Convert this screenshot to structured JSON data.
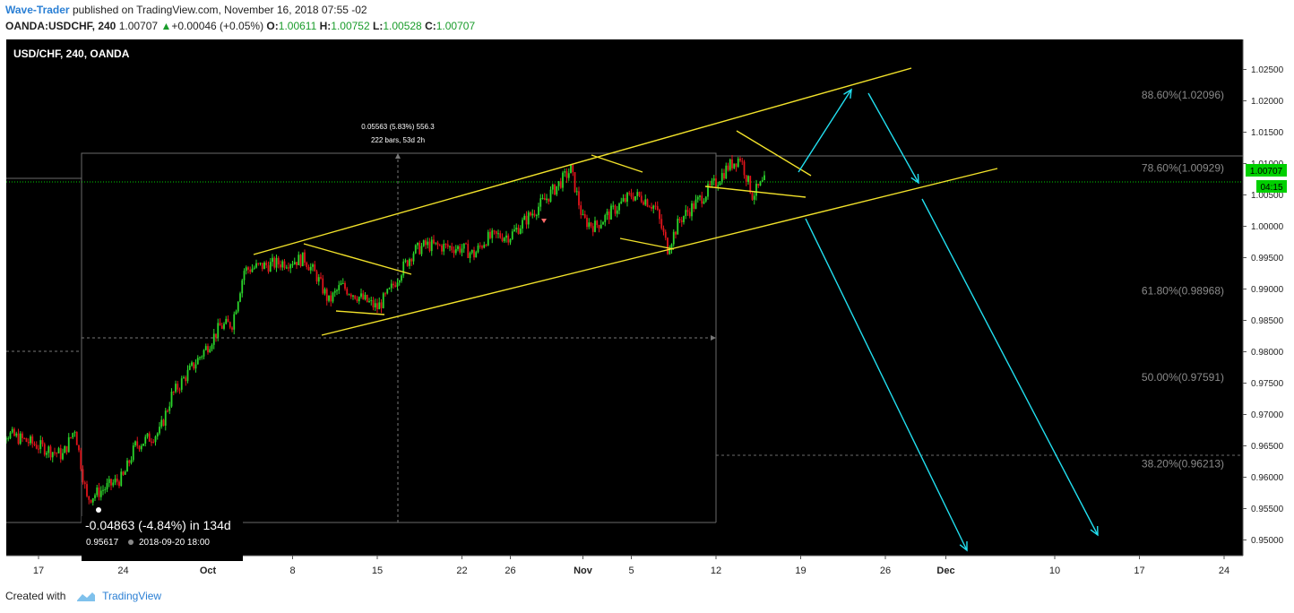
{
  "header": {
    "author": "Wave-Trader",
    "published": "published on TradingView.com, November 16, 2018 07:55 -02",
    "symbol": "OANDA:USDCHF, 240",
    "last": "1.00707",
    "change": "+0.00046 (+0.05%)",
    "o_label": "O:",
    "o_value": "1.00611",
    "h_label": "H:",
    "h_value": "1.00752",
    "l_label": "L:",
    "l_value": "1.00528",
    "c_label": "C:",
    "c_value": "1.00707"
  },
  "footer": {
    "created_with": "Created with",
    "brand": "TradingView"
  },
  "chart_data": {
    "type": "candlestick",
    "title": "USD/CHF, 240, OANDA",
    "ylim": [
      0.9475,
      1.0275
    ],
    "y_ticks": [
      "1.02500",
      "1.02000",
      "1.01500",
      "1.01000",
      "1.00500",
      "1.00000",
      "0.99500",
      "0.99000",
      "0.98500",
      "0.98000",
      "0.97500",
      "0.97000",
      "0.96500",
      "0.96000",
      "0.95500",
      "0.95000"
    ],
    "x_tick_labels": [
      {
        "label": "17",
        "date": "2018-09-17"
      },
      {
        "label": "24",
        "date": "2018-09-24"
      },
      {
        "label": "Oct",
        "date": "2018-10-01"
      },
      {
        "label": "8",
        "date": "2018-10-08"
      },
      {
        "label": "15",
        "date": "2018-10-15"
      },
      {
        "label": "22",
        "date": "2018-10-22"
      },
      {
        "label": "26",
        "date": "2018-10-26"
      },
      {
        "label": "Nov",
        "date": "2018-11-01"
      },
      {
        "label": "5",
        "date": "2018-11-05"
      },
      {
        "label": "12",
        "date": "2018-11-12"
      },
      {
        "label": "19",
        "date": "2018-11-19"
      },
      {
        "label": "26",
        "date": "2018-11-26"
      },
      {
        "label": "Dec",
        "date": "2018-12-01"
      },
      {
        "label": "10",
        "date": "2018-12-10"
      },
      {
        "label": "17",
        "date": "2018-12-17"
      },
      {
        "label": "24",
        "date": "2018-12-24"
      }
    ],
    "price_path": [
      [
        "2018-09-13",
        0.968
      ],
      [
        "2018-09-17",
        0.965
      ],
      [
        "2018-09-19",
        0.9635
      ],
      [
        "2018-09-20",
        0.9678
      ],
      [
        "2018-09-21",
        0.9565
      ],
      [
        "2018-09-24",
        0.96
      ],
      [
        "2018-09-25",
        0.965
      ],
      [
        "2018-09-27",
        0.9672
      ],
      [
        "2018-09-28",
        0.973
      ],
      [
        "2018-10-01",
        0.981
      ],
      [
        "2018-10-02",
        0.984
      ],
      [
        "2018-10-03",
        0.9845
      ],
      [
        "2018-10-04",
        0.993
      ],
      [
        "2018-10-05",
        0.9935
      ],
      [
        "2018-10-08",
        0.9945
      ],
      [
        "2018-10-09",
        0.9948
      ],
      [
        "2018-10-10",
        0.992
      ],
      [
        "2018-10-11",
        0.988
      ],
      [
        "2018-10-12",
        0.9905
      ],
      [
        "2018-10-15",
        0.987
      ],
      [
        "2018-10-16",
        0.9895
      ],
      [
        "2018-10-17",
        0.993
      ],
      [
        "2018-10-18",
        0.996
      ],
      [
        "2018-10-19",
        0.997
      ],
      [
        "2018-10-22",
        0.9965
      ],
      [
        "2018-10-23",
        0.9955
      ],
      [
        "2018-10-24",
        0.998
      ],
      [
        "2018-10-25",
        0.9985
      ],
      [
        "2018-10-26",
        0.9985
      ],
      [
        "2018-10-29",
        1.0045
      ],
      [
        "2018-10-31",
        1.009
      ],
      [
        "2018-11-01",
        1.001
      ],
      [
        "2018-11-02",
        1.0
      ],
      [
        "2018-11-05",
        1.005
      ],
      [
        "2018-11-06",
        1.0045
      ],
      [
        "2018-11-07",
        1.003
      ],
      [
        "2018-11-08",
        0.9965
      ],
      [
        "2018-11-09",
        1.001
      ],
      [
        "2018-11-12",
        1.007
      ],
      [
        "2018-11-13",
        1.0095
      ],
      [
        "2018-11-14",
        1.011
      ],
      [
        "2018-11-15",
        1.005
      ],
      [
        "2018-11-16",
        1.0071
      ]
    ],
    "last_price": "1.00707",
    "countdown": "04:15",
    "fib_levels": [
      {
        "label": "88.60%(1.02096)",
        "price": 1.02096
      },
      {
        "label": "78.60%(1.00929)",
        "price": 1.00929
      },
      {
        "label": "61.80%(0.98968)",
        "price": 0.98968
      },
      {
        "label": "50.00%(0.97591)",
        "price": 0.97591
      },
      {
        "label": "38.20%(0.96213)",
        "price": 0.96213
      }
    ],
    "measure": {
      "line1": "0.05563 (5.83%) 556.3",
      "line2": "222 bars, 53d 2h"
    },
    "range_info": {
      "change": "-0.04863 (-4.84%) in 134d",
      "low_price": "0.95617",
      "low_time": "2018-09-20  18:00"
    },
    "colors": {
      "background": "#000000",
      "up": "#2bd62b",
      "down": "#e0141b",
      "trendline": "#f2e22a",
      "projection": "#22dff0",
      "last_price": "#00d000",
      "fib_text": "#8a8a8a"
    }
  }
}
